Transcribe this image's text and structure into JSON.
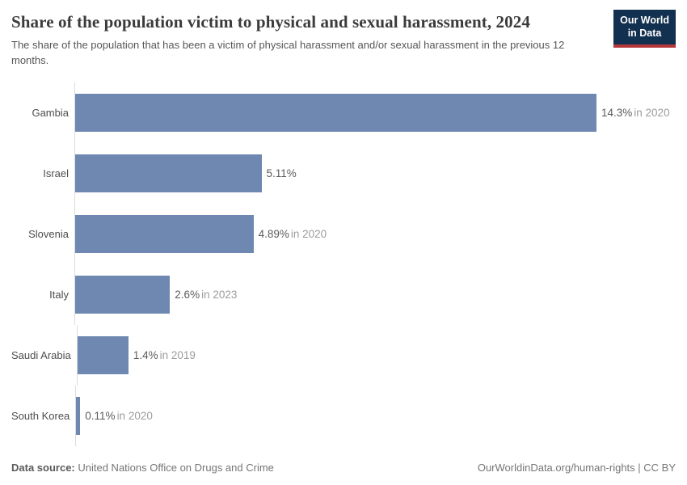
{
  "header": {
    "title": "Share of the population victim to physical and sexual harassment, 2024",
    "subtitle": "The share of the population that has been a victim of physical harassment and/or sexual harassment in the previous 12 months.",
    "logo": {
      "line1": "Our World",
      "line2": "in Data"
    }
  },
  "chart_data": {
    "type": "bar",
    "orientation": "horizontal",
    "title": "Share of the population victim to physical and sexual harassment, 2024",
    "categories": [
      "Gambia",
      "Israel",
      "Slovenia",
      "Italy",
      "Saudi Arabia",
      "South Korea"
    ],
    "values": [
      14.3,
      5.11,
      4.89,
      2.6,
      1.4,
      0.11
    ],
    "value_labels": [
      "14.3%",
      "5.11%",
      "4.89%",
      "2.6%",
      "1.4%",
      "0.11%"
    ],
    "year_labels": [
      "in 2020",
      "",
      "in 2020",
      "in 2023",
      "in 2019",
      "in 2020"
    ],
    "xlim": [
      0,
      14.3
    ],
    "unit": "%",
    "grid": false,
    "legend": "none",
    "bar_color": "#6e88b1",
    "axis_color": "#dcdcdc"
  },
  "footer": {
    "datasource_prefix": "Data source:",
    "datasource_text": " United Nations Office on Drugs and Crime",
    "link_text": "OurWorldinData.org/human-rights | CC BY"
  }
}
